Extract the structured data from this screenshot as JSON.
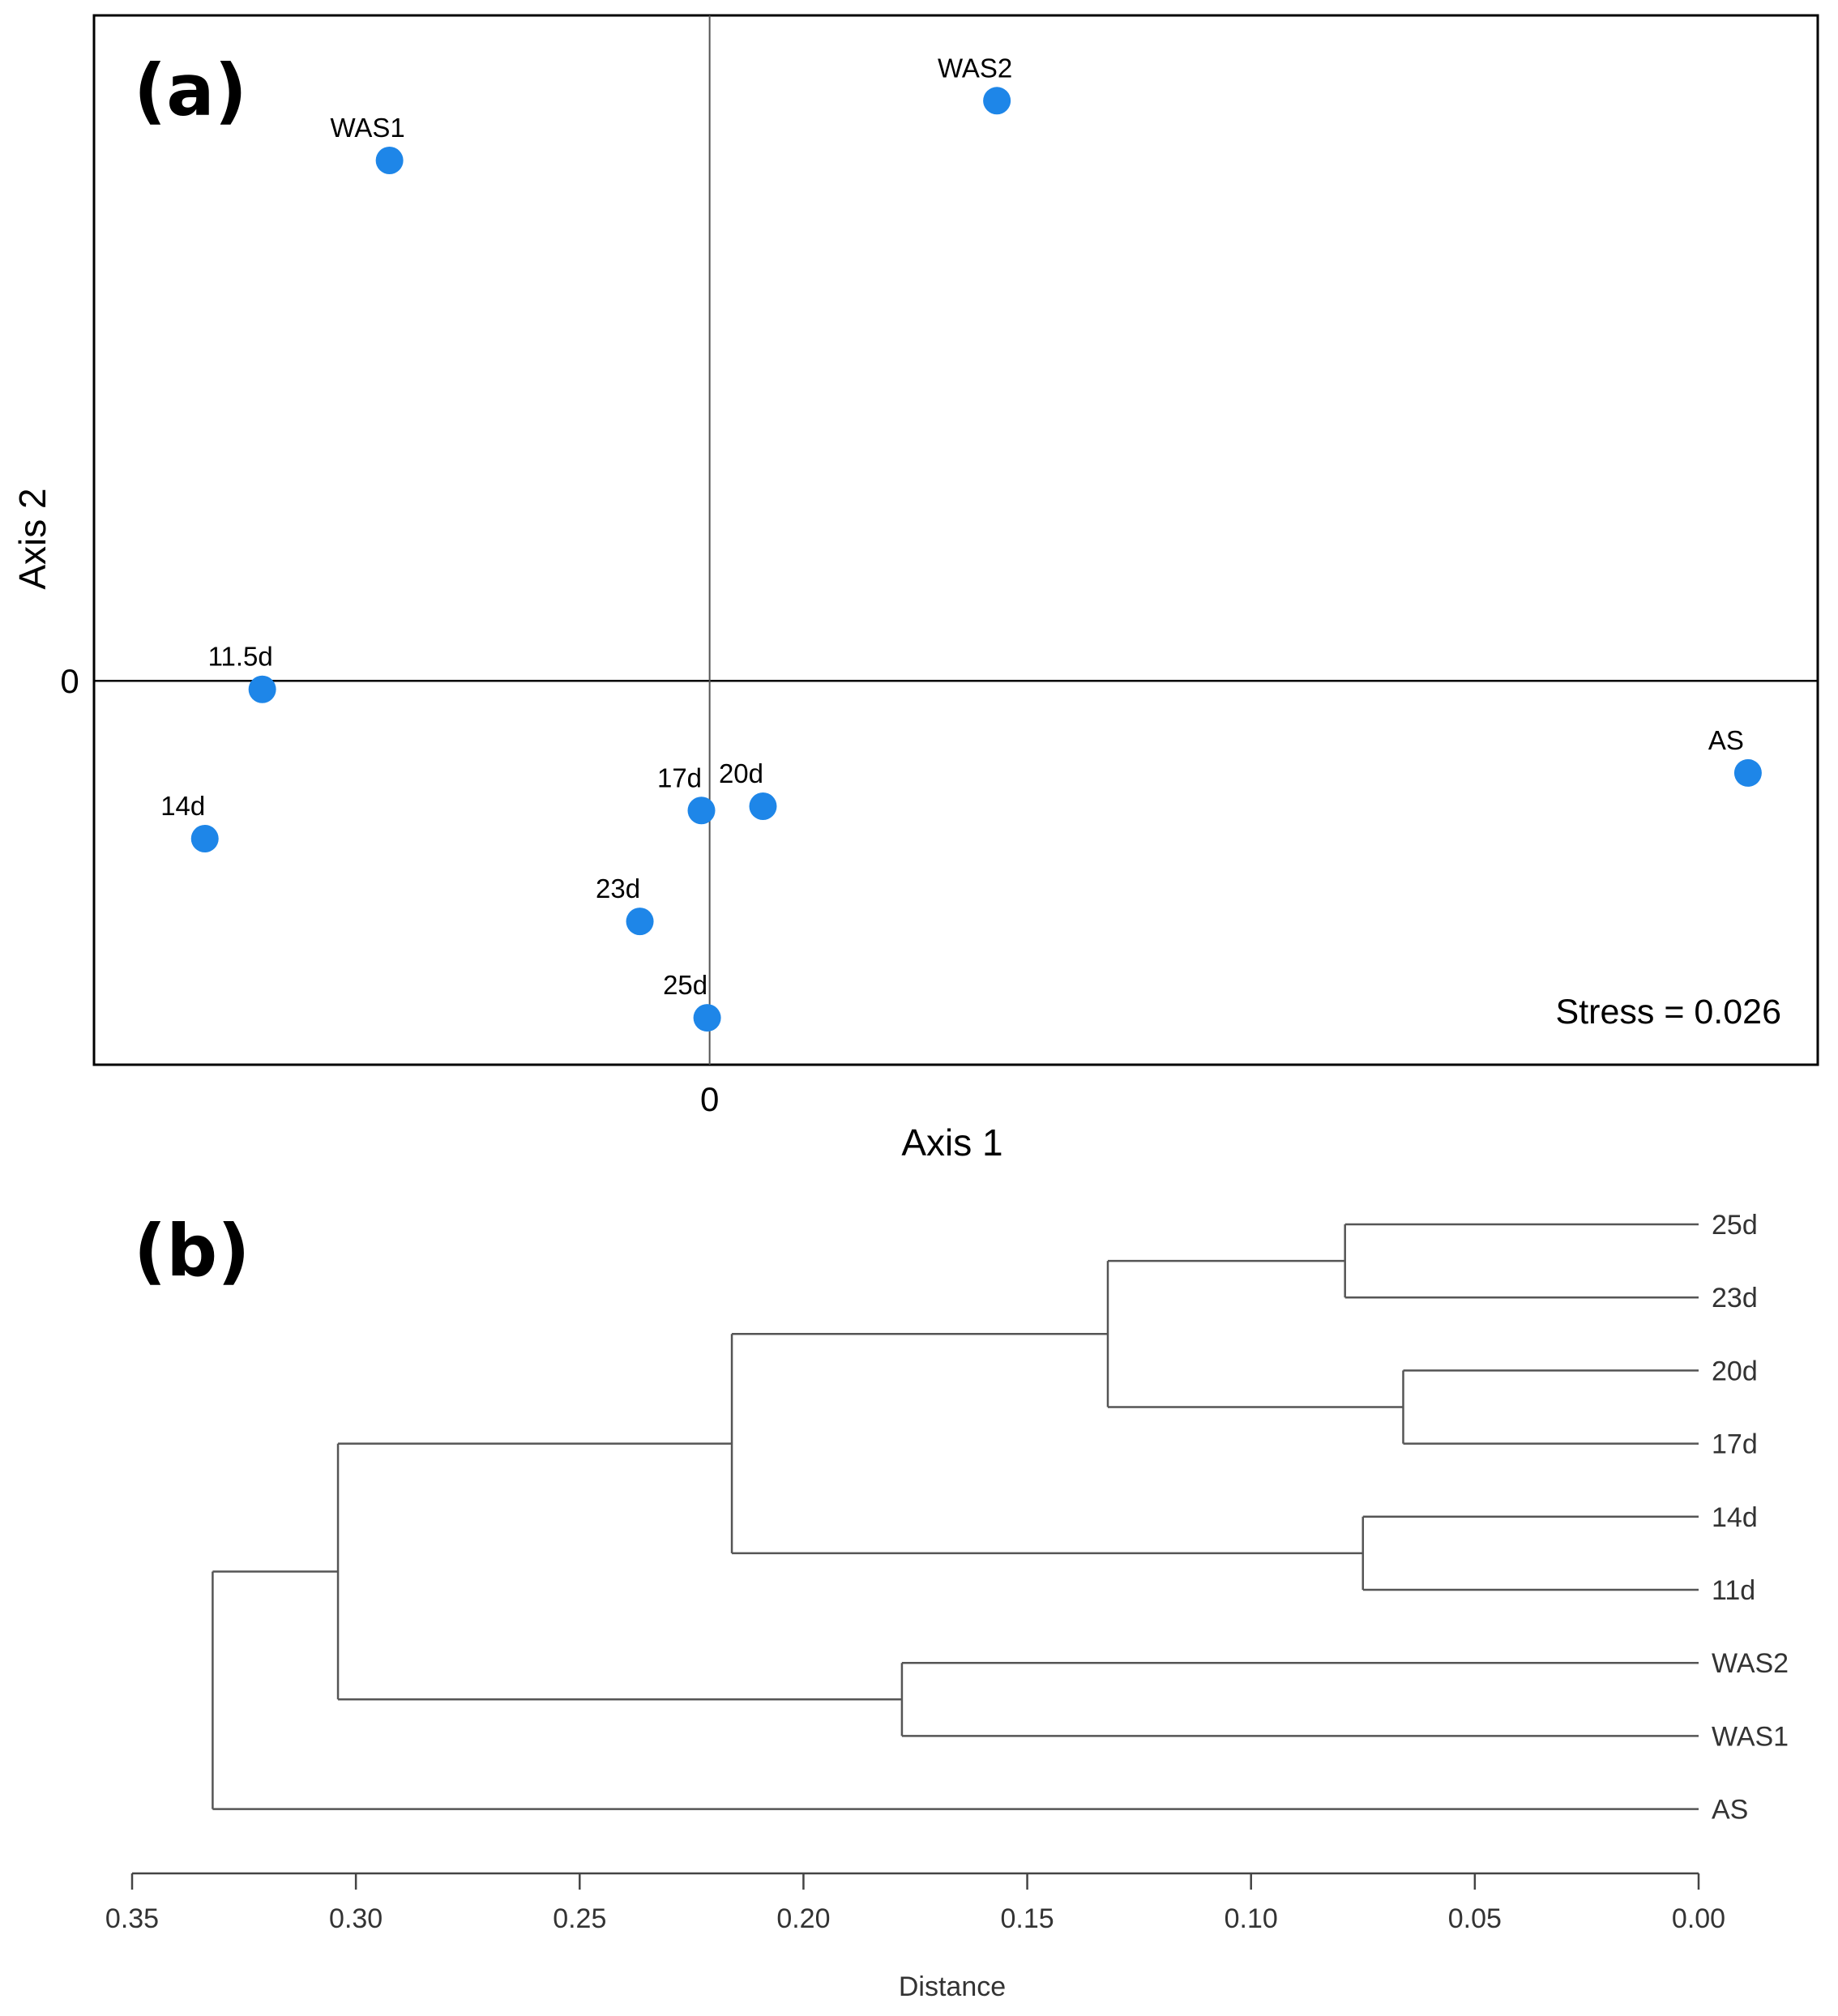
{
  "chart_data": [
    {
      "type": "scatter",
      "panel_label": "(a)",
      "title": "",
      "xlabel": "Axis 1",
      "ylabel": "Axis 2",
      "x_ticks": [
        "0"
      ],
      "y_ticks": [
        "0"
      ],
      "xlim": [
        -0.75,
        1.35
      ],
      "ylim": [
        -0.45,
        0.78
      ],
      "annotation": "Stress = 0.026",
      "point_color": "#1e86e8",
      "points": [
        {
          "label": "WAS1",
          "x": -0.39,
          "y": 0.61
        },
        {
          "label": "WAS2",
          "x": 0.35,
          "y": 0.68
        },
        {
          "label": "11.5d",
          "x": -0.545,
          "y": -0.01
        },
        {
          "label": "14d",
          "x": -0.615,
          "y": -0.185
        },
        {
          "label": "17d",
          "x": -0.01,
          "y": -0.152
        },
        {
          "label": "20d",
          "x": 0.065,
          "y": -0.147
        },
        {
          "label": "23d",
          "x": -0.085,
          "y": -0.282
        },
        {
          "label": "25d",
          "x": -0.003,
          "y": -0.395
        },
        {
          "label": "AS",
          "x": 1.265,
          "y": -0.108
        }
      ]
    },
    {
      "type": "dendrogram",
      "panel_label": "(b)",
      "title": "",
      "xlabel": "Distance",
      "ylabel": "",
      "xlim": [
        0.35,
        0.0
      ],
      "x_ticks": [
        0.35,
        0.3,
        0.25,
        0.2,
        0.15,
        0.1,
        0.05,
        0.0
      ],
      "x_tick_labels": [
        "0.35",
        "0.30",
        "0.25",
        "0.20",
        "0.15",
        "0.10",
        "0.05",
        "0.00"
      ],
      "leaves": [
        "25d",
        "23d",
        "20d",
        "17d",
        "14d",
        "11d",
        "WAS2",
        "WAS1",
        "AS"
      ],
      "merges": [
        {
          "id": "m1",
          "children": [
            "25d",
            "23d"
          ],
          "height": 0.079
        },
        {
          "id": "m2",
          "children": [
            "20d",
            "17d"
          ],
          "height": 0.066
        },
        {
          "id": "m3",
          "children": [
            "14d",
            "11d"
          ],
          "height": 0.075
        },
        {
          "id": "m4",
          "children": [
            "WAS2",
            "WAS1"
          ],
          "height": 0.178
        },
        {
          "id": "m5",
          "children": [
            "m1",
            "m2"
          ],
          "height": 0.132
        },
        {
          "id": "m6",
          "children": [
            "m5",
            "m3"
          ],
          "height": 0.216
        },
        {
          "id": "m7",
          "children": [
            "m6",
            "m4"
          ],
          "height": 0.304
        },
        {
          "id": "m8",
          "children": [
            "m7",
            "AS"
          ],
          "height": 0.332
        }
      ]
    }
  ]
}
